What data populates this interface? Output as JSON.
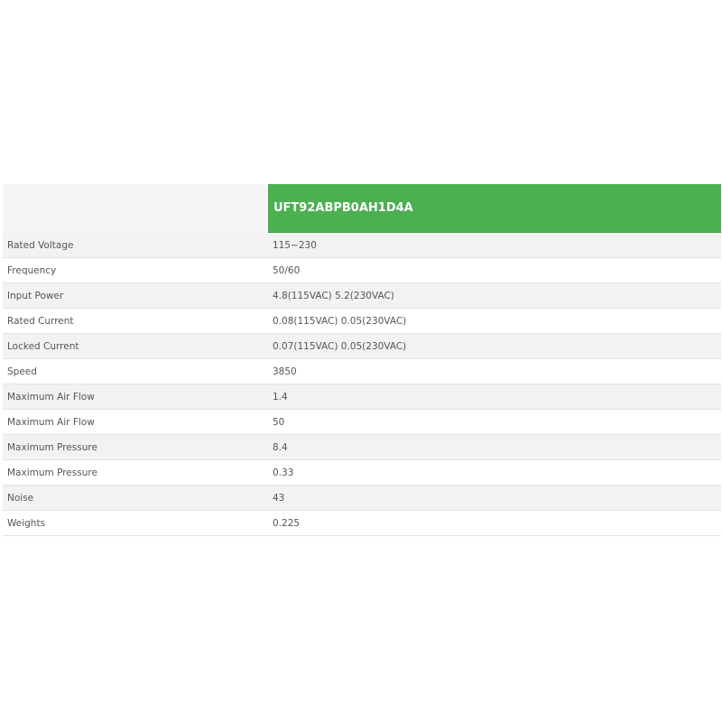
{
  "header": {
    "model": "UFT92ABPB0AH1D4A",
    "accent_color": "#4caf50"
  },
  "rows": [
    {
      "label": "Rated Voltage",
      "value": "115~230"
    },
    {
      "label": "Frequency",
      "value": "50/60"
    },
    {
      "label": "Input Power",
      "value": "4.8(115VAC) 5.2(230VAC)"
    },
    {
      "label": "Rated Current",
      "value": "0.08(115VAC) 0.05(230VAC)"
    },
    {
      "label": "Locked Current",
      "value": "0.07(115VAC) 0.05(230VAC)"
    },
    {
      "label": "Speed",
      "value": "3850"
    },
    {
      "label": "Maximum Air Flow",
      "value": "1.4"
    },
    {
      "label": "Maximum Air Flow",
      "value": "50"
    },
    {
      "label": "Maximum Pressure",
      "value": "8.4"
    },
    {
      "label": "Maximum Pressure",
      "value": "0.33"
    },
    {
      "label": "Noise",
      "value": "43"
    },
    {
      "label": "Weights",
      "value": "0.225"
    }
  ]
}
